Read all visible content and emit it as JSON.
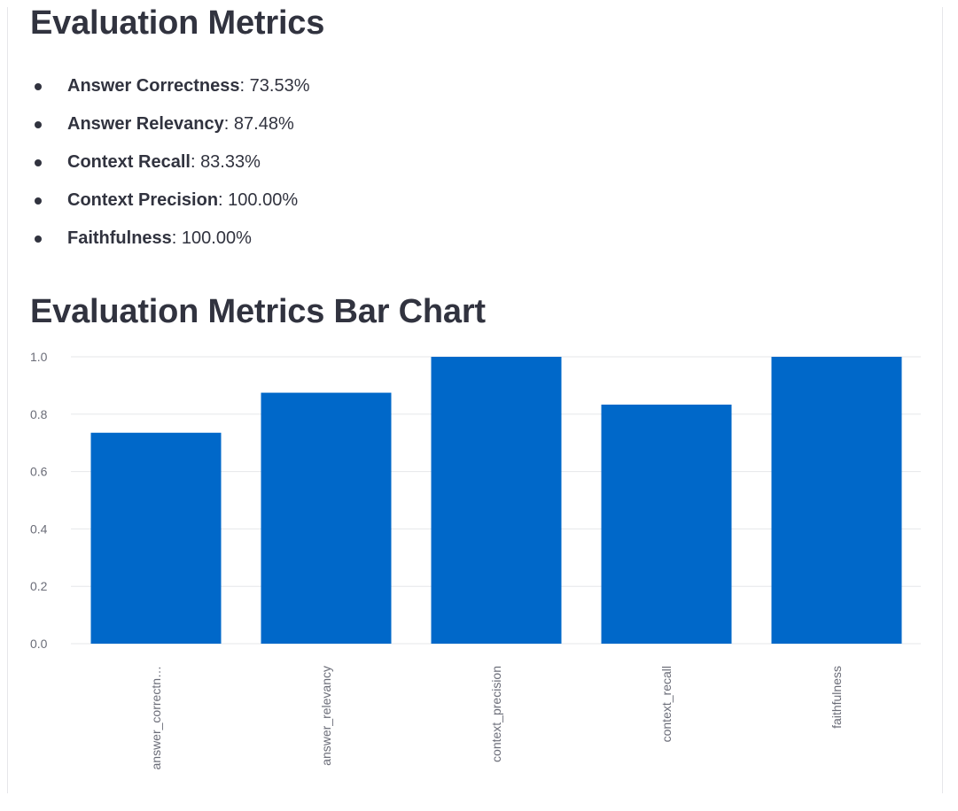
{
  "page": {
    "title": "Evaluation Metrics",
    "chart_heading": "Evaluation Metrics Bar Chart"
  },
  "metrics": [
    {
      "name": "Answer Correctness",
      "value": "73.53%"
    },
    {
      "name": "Answer Relevancy",
      "value": "87.48%"
    },
    {
      "name": "Context Recall",
      "value": "83.33%"
    },
    {
      "name": "Context Precision",
      "value": "100.00%"
    },
    {
      "name": "Faithfulness",
      "value": "100.00%"
    }
  ],
  "chart_data": {
    "type": "bar",
    "categories": [
      "answer_correctn…",
      "answer_relevancy",
      "context_precision",
      "context_recall",
      "faithfulness"
    ],
    "values": [
      0.7353,
      0.8748,
      1.0,
      0.8333,
      1.0
    ],
    "ylim": [
      0,
      1
    ],
    "yticks": [
      "0.0",
      "0.2",
      "0.4",
      "0.6",
      "0.8",
      "1.0"
    ],
    "grid": true,
    "bar_color": "#0068c9",
    "title": "",
    "xlabel": "",
    "ylabel": ""
  }
}
